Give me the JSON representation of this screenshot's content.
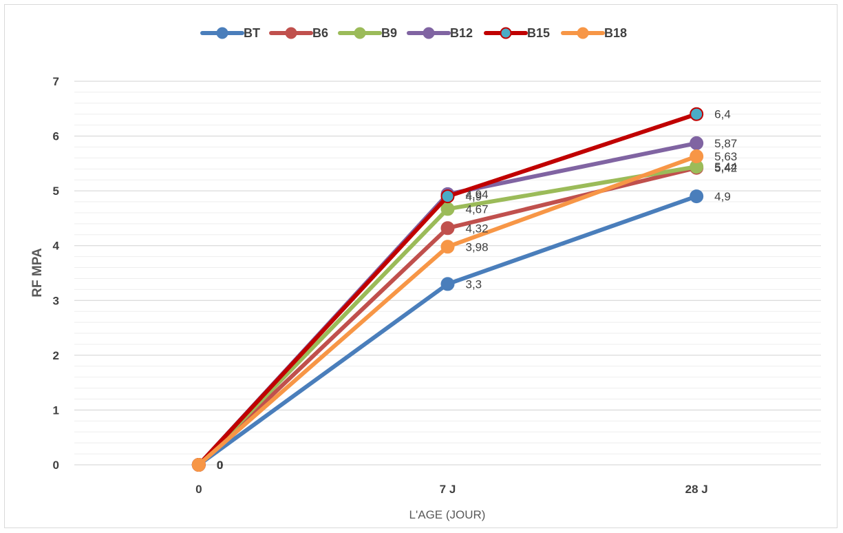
{
  "chart_data": {
    "type": "line",
    "categories": [
      "0",
      "7 J",
      "28 J"
    ],
    "xlabel": "L'AGE (JOUR)",
    "ylabel": "RF MPA",
    "ylim": [
      0,
      7
    ],
    "yticks": [
      "0",
      "1",
      "2",
      "3",
      "4",
      "5",
      "6",
      "7"
    ],
    "grid": true,
    "legend_position": "top",
    "series": [
      {
        "name": "BT",
        "color": "#4a7ebb",
        "marker": "#4a7ebb",
        "marker_border": "#4a7ebb",
        "values": [
          0,
          3.3,
          4.9
        ],
        "labels": [
          "0",
          "3,3",
          "4,9"
        ]
      },
      {
        "name": "B6",
        "color": "#c0504d",
        "marker": "#c0504d",
        "marker_border": "#c0504d",
        "values": [
          0,
          4.32,
          5.42
        ],
        "labels": [
          "0",
          "4,32",
          "5,42"
        ]
      },
      {
        "name": "B9",
        "color": "#9bbb59",
        "marker": "#9bbb59",
        "marker_border": "#9bbb59",
        "values": [
          0,
          4.67,
          5.44
        ],
        "labels": [
          "0",
          "4,67",
          "5,44"
        ]
      },
      {
        "name": "B12",
        "color": "#8064a2",
        "marker": "#8064a2",
        "marker_border": "#8064a2",
        "values": [
          0,
          4.94,
          5.87
        ],
        "labels": [
          "0",
          "4,94",
          "5,87"
        ]
      },
      {
        "name": "B15",
        "color": "#c00000",
        "marker": "#4bacc6",
        "marker_border": "#c00000",
        "values": [
          0,
          4.9,
          6.4
        ],
        "labels": [
          "0",
          "4,9",
          "6,4"
        ]
      },
      {
        "name": "B18",
        "color": "#f79646",
        "marker": "#f79646",
        "marker_border": "#f79646",
        "values": [
          0,
          3.98,
          5.63
        ],
        "labels": [
          "0",
          "3,98",
          "5,63"
        ]
      }
    ]
  }
}
